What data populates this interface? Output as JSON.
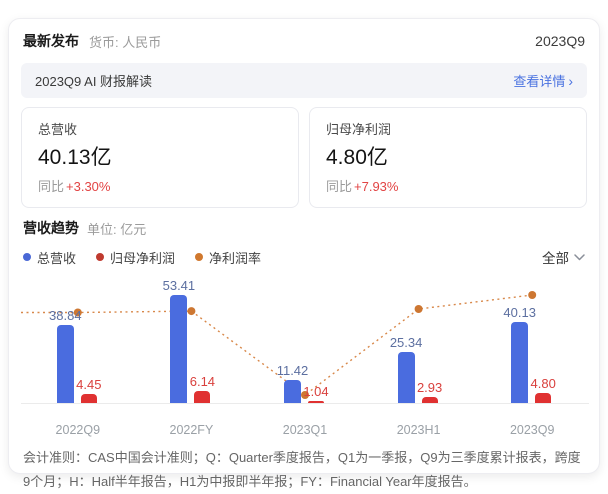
{
  "header": {
    "title": "最新发布",
    "currency_label": "货币: 人民币",
    "period": "2023Q9"
  },
  "ai_banner": {
    "title": "2023Q9 AI 财报解读",
    "link_label": "查看详情"
  },
  "icons": {
    "chevron_right": "›"
  },
  "summary_cards": [
    {
      "title": "总营收",
      "value": "40.13",
      "unit": "亿",
      "yoy_label": "同比",
      "yoy_value": "+3.30%"
    },
    {
      "title": "归母净利润",
      "value": "4.80",
      "unit": "亿",
      "yoy_label": "同比",
      "yoy_value": "+7.93%"
    }
  ],
  "trend_section": {
    "title": "营收趋势",
    "unit_label": "单位: 亿元",
    "filter_label": "全部"
  },
  "legend": [
    {
      "label": "总营收",
      "color": "#4a68d6"
    },
    {
      "label": "归母净利润",
      "color": "#bf3a2f"
    },
    {
      "label": "净利润率",
      "color": "#d0782e"
    }
  ],
  "colors": {
    "total_revenue_bar": "#4a6cdf",
    "net_profit_bar": "#e03131",
    "margin_line": "#d8884a",
    "margin_dot": "#cd7732",
    "revenue_label": "#5c6fa0",
    "profit_label": "#d9403d",
    "link_blue": "#4a72e0",
    "yoy_red": "#e24444"
  },
  "chart_data": {
    "type": "bar+line",
    "title": "营收趋势",
    "unit": "亿元",
    "categories": [
      "2022Q9",
      "2022FY",
      "2023Q1",
      "2023H1",
      "2023Q9"
    ],
    "series": [
      {
        "name": "总营收",
        "type": "bar",
        "color": "#4a6cdf",
        "values": [
          38.84,
          53.41,
          11.42,
          25.34,
          40.13
        ],
        "labels": [
          "38.84",
          "53.41",
          "11.42",
          "25.34",
          "40.13"
        ]
      },
      {
        "name": "归母净利润",
        "type": "bar",
        "color": "#e03131",
        "values": [
          4.45,
          6.14,
          1.04,
          2.93,
          4.8
        ],
        "labels": [
          "4.45",
          "6.14",
          "1.04",
          "2.93",
          "4.80"
        ]
      },
      {
        "name": "净利润率",
        "type": "line",
        "color": "#cd7732",
        "style": "dotted",
        "values_pct_estimated": [
          11.46,
          11.5,
          9.11,
          11.56,
          11.96
        ]
      }
    ],
    "ylim": [
      0,
      60
    ],
    "grid": false,
    "legend_position": "top-left"
  },
  "footnote": "会计准则：CAS中国会计准则；Q：Quarter季度报告，Q1为一季报，Q9为三季度累计报表，跨度9个月；H：Half半年报告，H1为中报即半年报；FY：Financial Year年度报告。"
}
